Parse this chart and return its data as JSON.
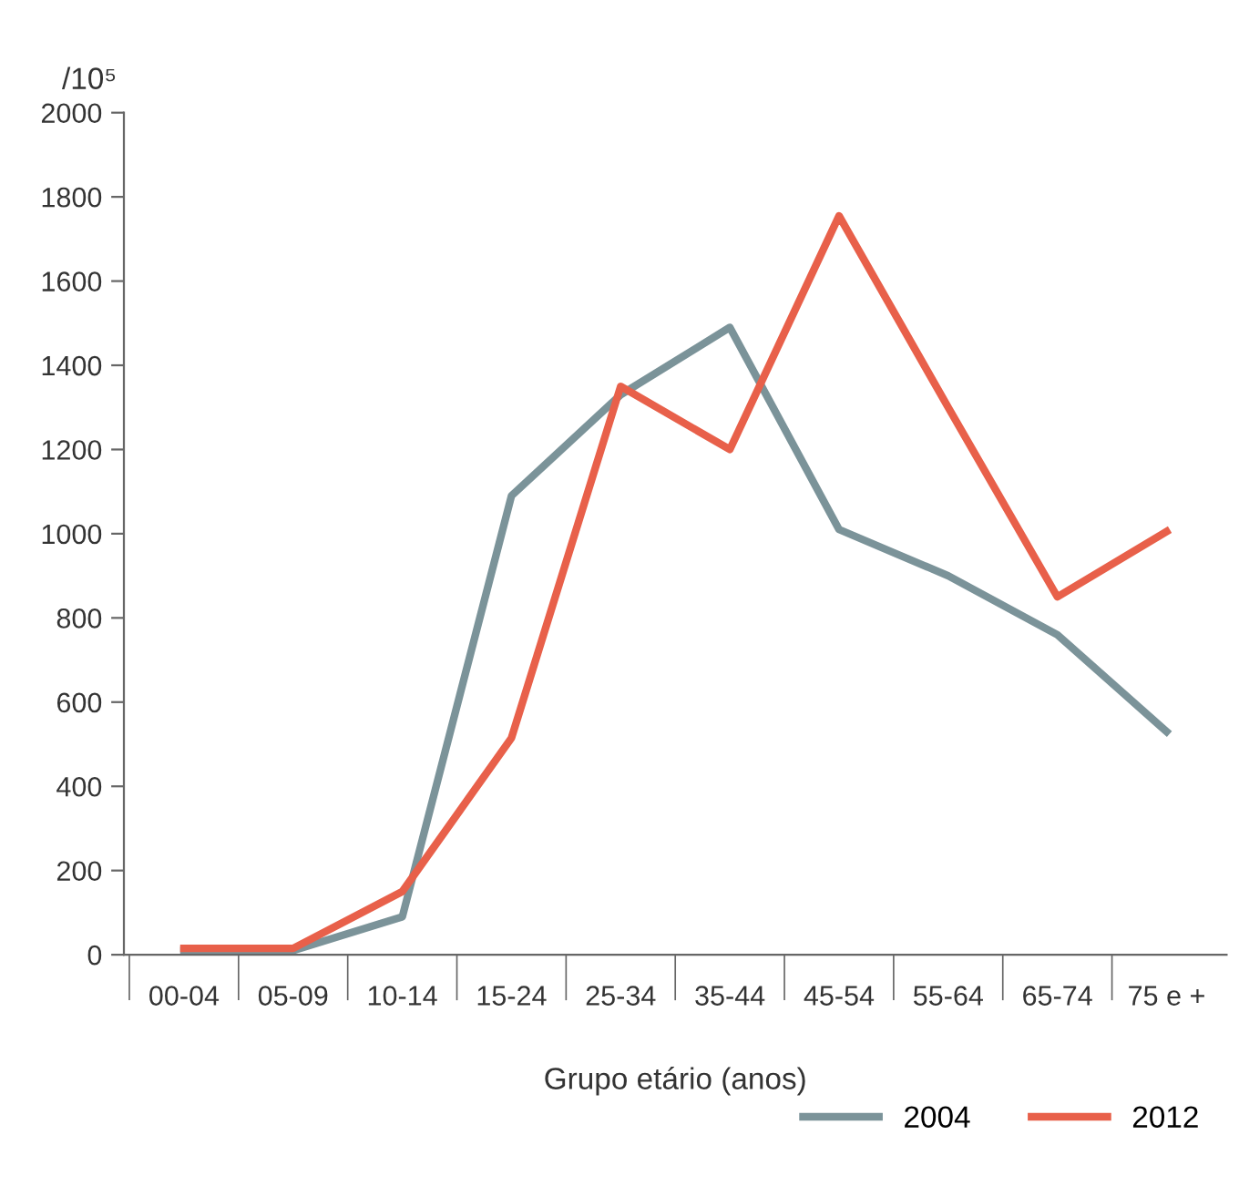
{
  "chart_data": {
    "type": "line",
    "ylabel": "/10⁵",
    "xlabel": "Grupo etário (anos)",
    "categories": [
      "00-04",
      "05-09",
      "10-14",
      "15-24",
      "25-34",
      "35-44",
      "45-54",
      "55-64",
      "65-74",
      "75 e +"
    ],
    "series": [
      {
        "name": "2004",
        "color": "#7b9399",
        "values": [
          10,
          10,
          90,
          1090,
          1330,
          1490,
          1010,
          900,
          760,
          530
        ]
      },
      {
        "name": "2012",
        "color": "#e8604a",
        "values": [
          15,
          15,
          150,
          515,
          1350,
          1200,
          1755,
          1300,
          850,
          1005
        ]
      }
    ],
    "ylim": [
      0,
      2000
    ],
    "yticks": [
      0,
      200,
      400,
      600,
      800,
      1000,
      1200,
      1400,
      1600,
      1800,
      2000
    ],
    "grid": false,
    "legend": "bottom right",
    "marker": "none",
    "line_style": "solid"
  }
}
